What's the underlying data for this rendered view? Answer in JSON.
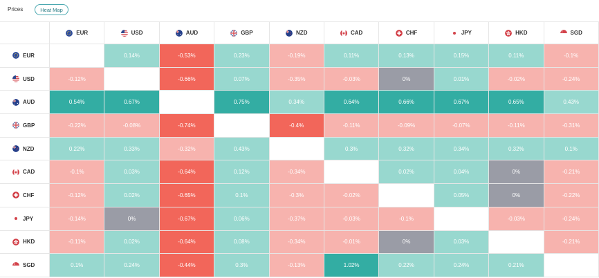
{
  "header": {
    "prices_label": "Prices",
    "heatmap_tab": "Heat Map"
  },
  "currencies": [
    "EUR",
    "USD",
    "AUD",
    "GBP",
    "NZD",
    "CAD",
    "CHF",
    "JPY",
    "HKD",
    "SGD"
  ],
  "flag_icons": [
    "eu-flag-icon",
    "us-flag-icon",
    "au-flag-icon",
    "gb-flag-icon",
    "nz-flag-icon",
    "ca-flag-icon",
    "ch-flag-icon",
    "jp-flag-icon",
    "hk-flag-icon",
    "sg-flag-icon"
  ],
  "colors": {
    "strong_up": "#33ada3",
    "up": "#98d8cf",
    "down": "#f7b3ae",
    "strong_down": "#f2665a",
    "zero": "#9a9ca6",
    "empty": "#ffffff"
  },
  "rows": [
    {
      "currency": "EUR",
      "values": [
        "",
        "0.14%",
        "-0.53%",
        "0.23%",
        "-0.19%",
        "0.11%",
        "0.13%",
        "0.15%",
        "0.11%",
        "-0.1%"
      ]
    },
    {
      "currency": "USD",
      "values": [
        "-0.12%",
        "",
        "-0.66%",
        "0.07%",
        "-0.35%",
        "-0.03%",
        "0%",
        "0.01%",
        "-0.02%",
        "-0.24%"
      ]
    },
    {
      "currency": "AUD",
      "values": [
        "0.54%",
        "0.67%",
        "",
        "0.75%",
        "0.34%",
        "0.64%",
        "0.66%",
        "0.67%",
        "0.65%",
        "0.43%"
      ]
    },
    {
      "currency": "GBP",
      "values": [
        "-0.22%",
        "-0.08%",
        "-0.74%",
        "",
        "-0.4%",
        "-0.11%",
        "-0.09%",
        "-0.07%",
        "-0.11%",
        "-0.31%"
      ]
    },
    {
      "currency": "NZD",
      "values": [
        "0.22%",
        "0.33%",
        "-0.32%",
        "0.43%",
        "",
        "0.3%",
        "0.32%",
        "0.34%",
        "0.32%",
        "0.1%"
      ]
    },
    {
      "currency": "CAD",
      "values": [
        "-0.1%",
        "0.03%",
        "-0.64%",
        "0.12%",
        "-0.34%",
        "",
        "0.02%",
        "0.04%",
        "0%",
        "-0.21%"
      ]
    },
    {
      "currency": "CHF",
      "values": [
        "-0.12%",
        "0.02%",
        "-0.65%",
        "0.1%",
        "-0.3%",
        "-0.02%",
        "",
        "0.05%",
        "0%",
        "-0.22%"
      ]
    },
    {
      "currency": "JPY",
      "values": [
        "-0.14%",
        "0%",
        "-0.67%",
        "0.06%",
        "-0.37%",
        "-0.03%",
        "-0.1%",
        "",
        "-0.03%",
        "-0.24%"
      ]
    },
    {
      "currency": "HKD",
      "values": [
        "-0.11%",
        "0.02%",
        "-0.64%",
        "0.08%",
        "-0.34%",
        "-0.01%",
        "0%",
        "0.03%",
        "",
        "-0.21%"
      ]
    },
    {
      "currency": "SGD",
      "values": [
        "0.1%",
        "0.24%",
        "-0.44%",
        "0.3%",
        "-0.13%",
        "1.02%",
        "0.22%",
        "0.24%",
        "0.21%",
        ""
      ]
    }
  ]
}
